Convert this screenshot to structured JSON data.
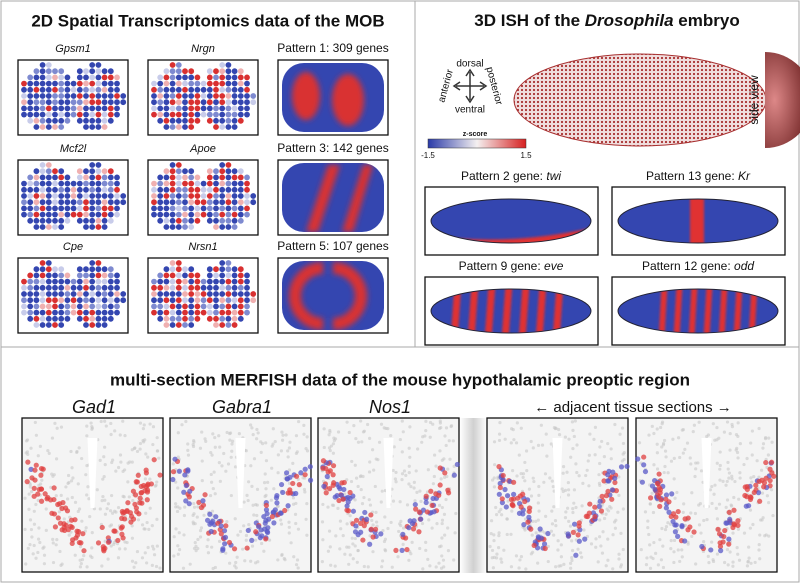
{
  "panel_a": {
    "title": "2D Spatial Transcriptomics data of the MOB",
    "genes": [
      "Gpsm1",
      "Nrgn",
      "Mcf2l",
      "Apoe",
      "Cpe",
      "Nrsn1"
    ],
    "patterns": [
      "Pattern 1: 309 genes",
      "Pattern 3: 142 genes",
      "Pattern 5: 107 genes"
    ]
  },
  "panel_b": {
    "title": [
      "3D ISH of the ",
      "Drosophila",
      " embryo"
    ],
    "axes": {
      "dorsal": "dorsal",
      "ventral": "ventral",
      "anterior": "anterior",
      "posterior": "posterior"
    },
    "side_view": "side view",
    "colorbar": {
      "label": "z-score",
      "min": "-1.5",
      "max": "1.5"
    },
    "patterns": [
      {
        "prefix": "Pattern 2 gene: ",
        "gene": "twi"
      },
      {
        "prefix": "Pattern 13 gene: ",
        "gene": "Kr"
      },
      {
        "prefix": "Pattern 9 gene: ",
        "gene": "eve"
      },
      {
        "prefix": "Pattern 12 gene: ",
        "gene": "odd"
      }
    ]
  },
  "panel_c": {
    "title": "multi-section MERFISH data of the mouse hypothalamic preoptic region",
    "genes": [
      "Gad1",
      "Gabra1",
      "Nos1"
    ],
    "note": "← adjacent tissue sections →"
  }
}
